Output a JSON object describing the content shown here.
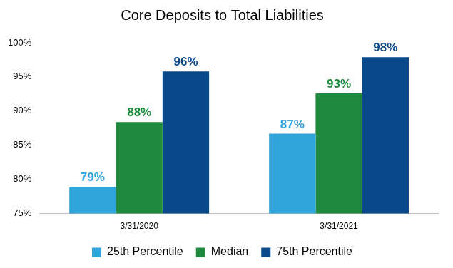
{
  "chart_data": {
    "type": "bar",
    "title": "Core Deposits to Total Liabilities",
    "categories": [
      "3/31/2020",
      "3/31/2021"
    ],
    "series": [
      {
        "name": "25th Percentile",
        "color": "#2fa4dd",
        "values": [
          78.9,
          86.7
        ],
        "value_labels": [
          "79%",
          "87%"
        ]
      },
      {
        "name": "Median",
        "color": "#1f8a3e",
        "values": [
          88.4,
          92.6
        ],
        "value_labels": [
          "88%",
          "93%"
        ]
      },
      {
        "name": "75th Percentile",
        "color": "#0b4a8a",
        "values": [
          95.8,
          97.9
        ],
        "value_labels": [
          "96%",
          "98%"
        ]
      }
    ],
    "ylim": [
      75,
      100
    ],
    "yticks": [
      {
        "value": 75,
        "label": "75%"
      },
      {
        "value": 80,
        "label": "80%"
      },
      {
        "value": 85,
        "label": "85%"
      },
      {
        "value": 90,
        "label": "90%"
      },
      {
        "value": 95,
        "label": "95%"
      },
      {
        "value": 100,
        "label": "100%"
      }
    ],
    "grid": false,
    "legend": "bottom",
    "data_labels": true
  }
}
